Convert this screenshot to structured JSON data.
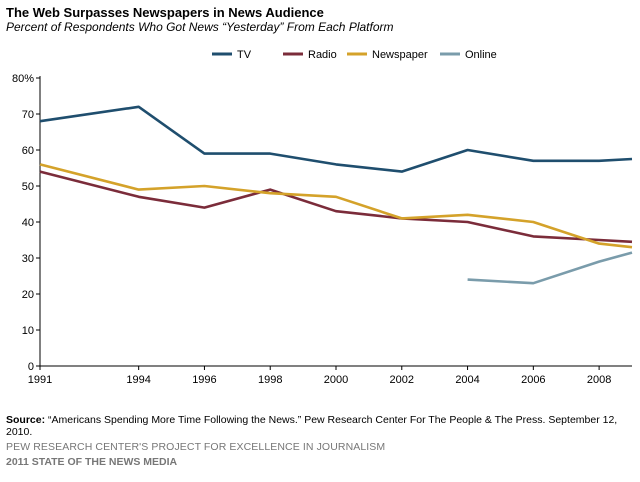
{
  "header": {
    "title": "The Web Surpasses Newspapers in News Audience",
    "subtitle": "Percent of Respondents Who Got News “Yesterday” From Each Platform"
  },
  "chart_data": {
    "type": "line",
    "title": "The Web Surpasses Newspapers in News Audience",
    "subtitle": "Percent of Respondents Who Got News “Yesterday” From Each Platform",
    "x": [
      1991,
      1994,
      1996,
      1998,
      2000,
      2002,
      2004,
      2006,
      2008,
      2009
    ],
    "xticks": [
      "1991",
      "1994",
      "1996",
      "1998",
      "2000",
      "2002",
      "2004",
      "2006",
      "2008"
    ],
    "xlim": [
      1991,
      2009
    ],
    "ylim": [
      0,
      80
    ],
    "yticks": [
      "0",
      "10",
      "20",
      "30",
      "40",
      "50",
      "60",
      "70",
      "80%"
    ],
    "grid": false,
    "legend_position": "top",
    "series": [
      {
        "name": "TV",
        "color": "#1f4e6e",
        "values": [
          68,
          72,
          59,
          59,
          56,
          54,
          60,
          57,
          57,
          57.5
        ]
      },
      {
        "name": "Radio",
        "color": "#7b2c3a",
        "values": [
          54,
          47,
          44,
          49,
          43,
          41,
          40,
          36,
          35,
          34.5
        ]
      },
      {
        "name": "Newspaper",
        "color": "#d4a22a",
        "values": [
          56,
          49,
          50,
          48,
          47,
          41,
          42,
          40,
          34,
          33
        ]
      },
      {
        "name": "Online",
        "color": "#7a9cab",
        "values": [
          null,
          null,
          null,
          null,
          null,
          null,
          24,
          23,
          29,
          31.5
        ]
      }
    ]
  },
  "footer": {
    "source_label": "Source:",
    "source_text": " “Americans Spending More Time Following the News.” Pew Research Center For The People & The Press. September 12, 2010.",
    "project": "PEW RESEARCH CENTER'S PROJECT FOR EXCELLENCE IN JOURNALISM",
    "report": "2011 STATE OF THE NEWS MEDIA"
  }
}
